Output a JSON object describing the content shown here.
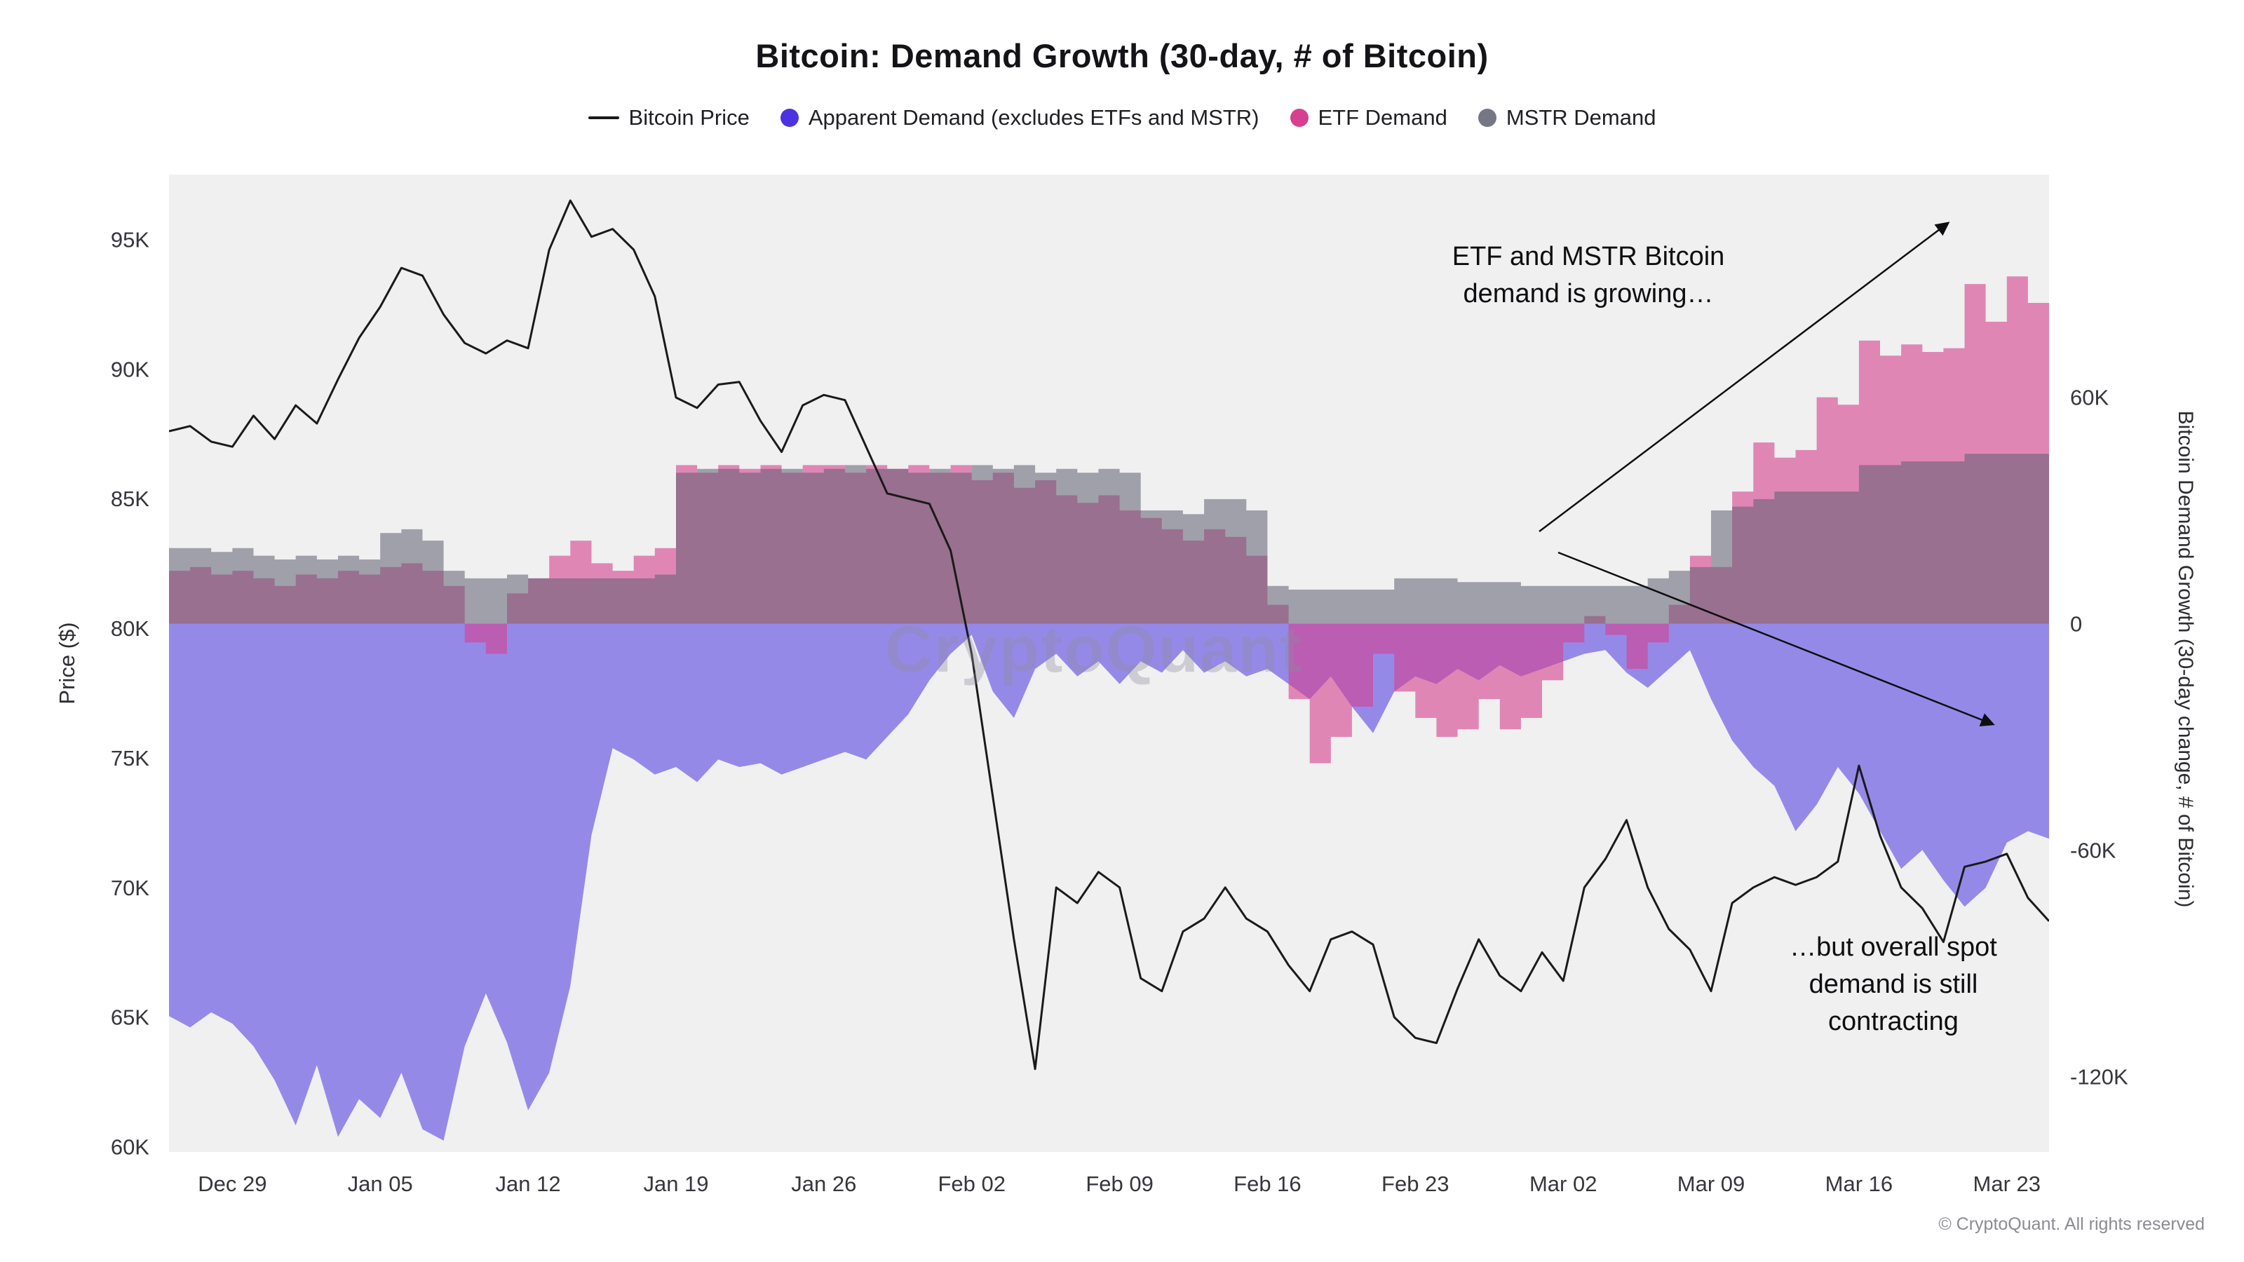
{
  "title": "Bitcoin: Demand Growth (30-day, # of Bitcoin)",
  "legend": [
    {
      "label": "Bitcoin Price",
      "swatch": "line",
      "color": "#1a1a1a"
    },
    {
      "label": "Apparent Demand (excludes ETFs and MSTR)",
      "swatch": "dot",
      "color": "#4b34e0"
    },
    {
      "label": "ETF Demand",
      "swatch": "dot",
      "color": "#d6408e"
    },
    {
      "label": "MSTR Demand",
      "swatch": "dot",
      "color": "#767684"
    }
  ],
  "annotations": {
    "growing": {
      "lines": [
        "ETF and MSTR Bitcoin",
        "demand is growing…"
      ]
    },
    "contracting": {
      "lines": [
        "…but overall spot",
        "demand  is still",
        "contracting"
      ]
    }
  },
  "watermark": "CryptoQuant",
  "footer": "© CryptoQuant. All rights reserved",
  "chart_data": {
    "type": "area",
    "title": "Bitcoin: Demand Growth (30-day, # of Bitcoin)",
    "xlabel": "",
    "ylabel_left": "Price ($)",
    "ylabel_right": "Bitcoin Demand Growth (30-day change, # of Bitcoin)",
    "left_range": [
      59.8,
      97.5
    ],
    "right_range": [
      -140,
      119
    ],
    "plot_bg": "#f0f0f1",
    "grid": false,
    "legend_position": "top",
    "y_ticks_left": [
      {
        "label": "95K",
        "value": 95
      },
      {
        "label": "90K",
        "value": 90
      },
      {
        "label": "85K",
        "value": 85
      },
      {
        "label": "80K",
        "value": 80
      },
      {
        "label": "75K",
        "value": 75
      },
      {
        "label": "70K",
        "value": 70
      },
      {
        "label": "65K",
        "value": 65
      },
      {
        "label": "60K",
        "value": 60
      }
    ],
    "y_ticks_right": [
      {
        "label": "60K",
        "value": 60
      },
      {
        "label": "0",
        "value": 0
      },
      {
        "label": "-60K",
        "value": -60
      },
      {
        "label": "-120K",
        "value": -120
      }
    ],
    "x_ticks": [
      "Dec 29",
      "Jan 05",
      "Jan 12",
      "Jan 19",
      "Jan 26",
      "Feb 02",
      "Feb 09",
      "Feb 16",
      "Feb 23",
      "Mar 02",
      "Mar 09",
      "Mar 16",
      "Mar 23"
    ],
    "dates": [
      "Dec 26",
      "Dec 27",
      "Dec 28",
      "Dec 29",
      "Dec 30",
      "Dec 31",
      "Jan 01",
      "Jan 02",
      "Jan 03",
      "Jan 04",
      "Jan 05",
      "Jan 06",
      "Jan 07",
      "Jan 08",
      "Jan 09",
      "Jan 10",
      "Jan 11",
      "Jan 12",
      "Jan 13",
      "Jan 14",
      "Jan 15",
      "Jan 16",
      "Jan 17",
      "Jan 18",
      "Jan 19",
      "Jan 20",
      "Jan 21",
      "Jan 22",
      "Jan 23",
      "Jan 24",
      "Jan 25",
      "Jan 26",
      "Jan 27",
      "Jan 28",
      "Jan 29",
      "Jan 30",
      "Jan 31",
      "Feb 01",
      "Feb 02",
      "Feb 03",
      "Feb 04",
      "Feb 05",
      "Feb 06",
      "Feb 07",
      "Feb 08",
      "Feb 09",
      "Feb 10",
      "Feb 11",
      "Feb 12",
      "Feb 13",
      "Feb 14",
      "Feb 15",
      "Feb 16",
      "Feb 17",
      "Feb 18",
      "Feb 19",
      "Feb 20",
      "Feb 21",
      "Feb 22",
      "Feb 23",
      "Feb 24",
      "Feb 25",
      "Feb 26",
      "Feb 27",
      "Feb 28",
      "Mar 01",
      "Mar 02",
      "Mar 03",
      "Mar 04",
      "Mar 05",
      "Mar 06",
      "Mar 07",
      "Mar 08",
      "Mar 09",
      "Mar 10",
      "Mar 11",
      "Mar 12",
      "Mar 13",
      "Mar 14",
      "Mar 15",
      "Mar 16",
      "Mar 17",
      "Mar 18",
      "Mar 19",
      "Mar 20",
      "Mar 21",
      "Mar 22",
      "Mar 23",
      "Mar 24",
      "Mar 25"
    ],
    "series": [
      {
        "name": "Bitcoin Price",
        "axis": "left",
        "type": "line",
        "step": false,
        "color": "#1a1a1a",
        "opacity": 1,
        "unit": "K USD",
        "values": [
          87.6,
          87.8,
          87.2,
          87.0,
          88.2,
          87.3,
          88.6,
          87.9,
          89.6,
          91.2,
          92.4,
          93.9,
          93.6,
          92.1,
          91.0,
          90.6,
          91.1,
          90.8,
          94.6,
          96.5,
          95.1,
          95.4,
          94.6,
          92.8,
          88.9,
          88.5,
          89.4,
          89.5,
          88.0,
          86.8,
          88.6,
          89.0,
          88.8,
          87.0,
          85.2,
          85.0,
          84.8,
          83.0,
          79.0,
          73.5,
          68.0,
          63.0,
          70.0,
          69.4,
          70.6,
          70.0,
          66.5,
          66.0,
          68.3,
          68.8,
          70.0,
          68.8,
          68.3,
          67.0,
          66.0,
          68.0,
          68.3,
          67.8,
          65.0,
          64.2,
          64.0,
          66.1,
          68.0,
          66.6,
          66.0,
          67.5,
          66.4,
          70.0,
          71.1,
          72.6,
          70.0,
          68.4,
          67.6,
          66.0,
          69.4,
          70.0,
          70.4,
          70.1,
          70.4,
          71.0,
          74.7,
          72.0,
          70.0,
          69.2,
          67.9,
          70.8,
          71.0,
          71.3,
          69.6,
          68.7
        ]
      },
      {
        "name": "Apparent Demand (excludes ETFs and MSTR)",
        "axis": "right",
        "type": "area",
        "step": false,
        "color": "#4b34e0",
        "opacity": 0.55,
        "unit": "K BTC",
        "values": [
          -104,
          -107,
          -103,
          -106,
          -112,
          -121,
          -133,
          -117,
          -136,
          -126,
          -131,
          -119,
          -134,
          -137,
          -112,
          -98,
          -111,
          -129,
          -119,
          -96,
          -56,
          -33,
          -36,
          -40,
          -38,
          -42,
          -36,
          -38,
          -37,
          -40,
          -38,
          -36,
          -34,
          -36,
          -30,
          -24,
          -15,
          -8,
          -3,
          -18,
          -25,
          -12,
          -8,
          -14,
          -10,
          -16,
          -10,
          -13,
          -7,
          -13,
          -10,
          -14,
          -12,
          -16,
          -20,
          -14,
          -22,
          -29,
          -18,
          -14,
          -16,
          -12,
          -15,
          -11,
          -14,
          -12,
          -10,
          -8,
          -7,
          -13,
          -17,
          -12,
          -7,
          -20,
          -31,
          -38,
          -43,
          -55,
          -48,
          -38,
          -45,
          -55,
          -65,
          -60,
          -68,
          -75,
          -70,
          -58,
          -55,
          -57
        ]
      },
      {
        "name": "ETF Demand",
        "axis": "right",
        "type": "area",
        "step": true,
        "color": "#d6408e",
        "opacity": 0.6,
        "unit": "K BTC",
        "values": [
          14,
          15,
          13,
          14,
          12,
          10,
          13,
          12,
          14,
          13,
          15,
          16,
          14,
          10,
          -5,
          -8,
          8,
          12,
          18,
          22,
          16,
          14,
          18,
          20,
          42,
          40,
          42,
          41,
          42,
          40,
          42,
          42,
          40,
          42,
          41,
          42,
          40,
          42,
          38,
          40,
          36,
          38,
          34,
          32,
          34,
          30,
          28,
          25,
          22,
          25,
          23,
          18,
          5,
          -20,
          -37,
          -30,
          -22,
          -8,
          -18,
          -25,
          -30,
          -28,
          -20,
          -28,
          -25,
          -15,
          -5,
          2,
          -3,
          -12,
          -5,
          5,
          18,
          15,
          35,
          48,
          44,
          46,
          60,
          58,
          75,
          71,
          74,
          72,
          73,
          90,
          80,
          92,
          85,
          88
        ]
      },
      {
        "name": "MSTR Demand",
        "axis": "right",
        "type": "area",
        "step": true,
        "color": "#5f5f70",
        "opacity": 0.55,
        "unit": "K BTC",
        "values": [
          20,
          20,
          19,
          20,
          18,
          17,
          18,
          17,
          18,
          17,
          24,
          25,
          22,
          14,
          12,
          12,
          13,
          12,
          12,
          12,
          12,
          12,
          12,
          13,
          40,
          41,
          41,
          40,
          41,
          41,
          40,
          41,
          42,
          41,
          41,
          40,
          41,
          40,
          42,
          41,
          42,
          40,
          41,
          40,
          41,
          40,
          30,
          30,
          29,
          33,
          33,
          30,
          10,
          9,
          9,
          9,
          9,
          9,
          12,
          12,
          12,
          11,
          11,
          11,
          10,
          10,
          10,
          10,
          10,
          10,
          12,
          14,
          15,
          30,
          31,
          33,
          35,
          35,
          35,
          35,
          42,
          42,
          43,
          43,
          43,
          45,
          45,
          45,
          45,
          45
        ]
      }
    ]
  }
}
